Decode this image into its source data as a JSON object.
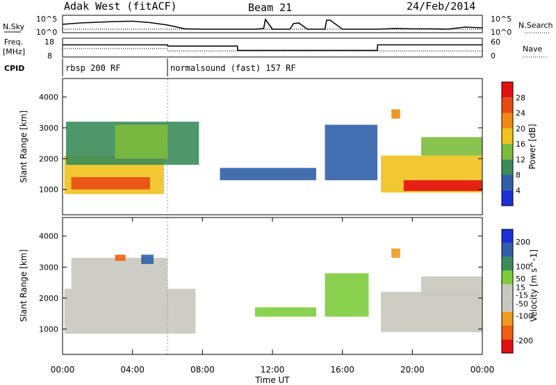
{
  "header": {
    "station": "Adak West (fitACF)",
    "beam": "Beam 21",
    "date": "24/Feb/2014"
  },
  "colors": {
    "power": [
      "#1a2fd6",
      "#2f5fa8",
      "#3c8c5a",
      "#7dbb3c",
      "#f0c21e",
      "#f08a14",
      "#e84a14",
      "#e31010"
    ],
    "velocity": [
      "#e31010",
      "#f06010",
      "#f09a20",
      "#c8c8c0",
      "#c8c8c0",
      "#7dcc3c",
      "#3c8c5a",
      "#2f5fa8",
      "#1a2fd6"
    ],
    "ground_scatter": "#c8c8c0"
  },
  "chart_data": [
    {
      "type": "line",
      "name": "noise-panel",
      "left_label": "N.Sky",
      "right_label": "N.Search",
      "left_ticks": [
        "10^5",
        "10^0"
      ],
      "right_ticks": [
        "10^5",
        "10^0"
      ],
      "series": [
        {
          "name": "N.Sky",
          "style": "solid",
          "x": [
            0,
            1,
            2,
            3,
            4,
            5,
            6,
            7,
            8,
            9,
            10,
            11,
            11.5,
            11.6,
            12,
            13,
            13.2,
            13.5,
            14,
            15,
            15.1,
            15.3,
            16,
            17,
            18,
            19,
            20,
            21,
            22,
            23,
            24
          ],
          "y": [
            2.4,
            2.8,
            3.0,
            3.2,
            3.3,
            2.9,
            2.2,
            1.1,
            1.0,
            1.0,
            1.0,
            1.0,
            1.2,
            3.8,
            1.0,
            1.0,
            2.6,
            2.8,
            1.0,
            1.0,
            3.6,
            3.6,
            1.0,
            1.0,
            1.0,
            1.2,
            1.1,
            1.1,
            1.0,
            1.6,
            1.4
          ]
        },
        {
          "name": "N.Search",
          "style": "dotted",
          "x": [
            0,
            6,
            12,
            18,
            24
          ],
          "y": [
            1.0,
            1.0,
            1.0,
            1.0,
            1.0
          ]
        }
      ],
      "xlim": [
        0,
        24
      ],
      "ylim": [
        0,
        5
      ]
    },
    {
      "type": "line",
      "name": "freq-panel",
      "left_label": "Freq.",
      "left_unit": "[MHz]",
      "right_label": "Nave",
      "left_ticks": [
        "18",
        "8"
      ],
      "right_ticks": [
        "60",
        "0"
      ],
      "series": [
        {
          "name": "Freq.",
          "style": "solid",
          "x": [
            0,
            6.0,
            6.01,
            10.0,
            10.01,
            18.0,
            18.01,
            24
          ],
          "y": [
            14.5,
            14.5,
            13.8,
            13.8,
            11.5,
            11.5,
            14.5,
            14.5
          ]
        },
        {
          "name": "Nave",
          "style": "dotted",
          "x": [
            0,
            6.0,
            6.01,
            24
          ],
          "y": [
            12.5,
            12.5,
            11.2,
            11.2
          ]
        }
      ],
      "xlim": [
        0,
        24
      ],
      "ylim": [
        8,
        18
      ]
    },
    {
      "type": "table",
      "name": "cpid-bar",
      "label": "CPID",
      "segments": [
        {
          "start": 0,
          "end": 6,
          "text": "rbsp 200 RF"
        },
        {
          "start": 6,
          "end": 24,
          "text": "normalsound (fast) 157 RF"
        }
      ]
    },
    {
      "type": "heatmap",
      "name": "power-panel",
      "ylabel": "Slant Range [km]",
      "yticks": [
        1000,
        2000,
        3000,
        4000
      ],
      "ylim": [
        180,
        4600
      ],
      "xlim": [
        0,
        24
      ],
      "colorbar": {
        "label": "Power [dB]",
        "ticks": [
          4,
          8,
          12,
          16,
          20,
          24,
          28
        ],
        "range": [
          0,
          32
        ]
      },
      "regions": [
        {
          "x0": 0.1,
          "x1": 5.8,
          "y0": 850,
          "y1": 2100,
          "value": 18
        },
        {
          "x0": 0.5,
          "x1": 5.0,
          "y0": 1000,
          "y1": 1400,
          "value": 27
        },
        {
          "x0": 0.2,
          "x1": 7.8,
          "y0": 1800,
          "y1": 3200,
          "value": 8
        },
        {
          "x0": 3.0,
          "x1": 6.0,
          "y0": 2000,
          "y1": 3100,
          "value": 14
        },
        {
          "x0": 9.0,
          "x1": 14.5,
          "y0": 1300,
          "y1": 1700,
          "value": 6
        },
        {
          "x0": 15.0,
          "x1": 18.0,
          "y0": 1300,
          "y1": 3100,
          "value": 6
        },
        {
          "x0": 18.2,
          "x1": 24.0,
          "y0": 900,
          "y1": 2100,
          "value": 18
        },
        {
          "x0": 19.5,
          "x1": 24.0,
          "y0": 950,
          "y1": 1300,
          "value": 28
        },
        {
          "x0": 20.5,
          "x1": 24.0,
          "y0": 2100,
          "y1": 2700,
          "value": 14
        },
        {
          "x0": 18.8,
          "x1": 19.3,
          "y0": 3300,
          "y1": 3600,
          "value": 22
        }
      ]
    },
    {
      "type": "heatmap",
      "name": "velocity-panel",
      "ylabel": "Slant Range [km]",
      "yticks": [
        1000,
        2000,
        3000,
        4000
      ],
      "ylim": [
        180,
        4600
      ],
      "xlim": [
        0,
        24
      ],
      "xticks": [
        "00:00",
        "04:00",
        "08:00",
        "12:00",
        "16:00",
        "20:00",
        "00:00"
      ],
      "xlabel": "Time UT",
      "colorbar": {
        "label": "Velocity [m s^-1]",
        "ticks": [
          -200,
          -100,
          -50,
          -15,
          15,
          50,
          100,
          200
        ],
        "range": [
          -250,
          250
        ]
      },
      "regions": [
        {
          "x0": 0.1,
          "x1": 7.6,
          "y0": 850,
          "y1": 2300,
          "value": 0
        },
        {
          "x0": 0.5,
          "x1": 6.0,
          "y0": 2300,
          "y1": 3300,
          "value": 0
        },
        {
          "x0": 3.0,
          "x1": 3.6,
          "y0": 3200,
          "y1": 3400,
          "value": -180
        },
        {
          "x0": 4.5,
          "x1": 5.2,
          "y0": 3100,
          "y1": 3400,
          "value": 150
        },
        {
          "x0": 11.0,
          "x1": 14.5,
          "y0": 1400,
          "y1": 1700,
          "value": 40
        },
        {
          "x0": 15.0,
          "x1": 17.5,
          "y0": 1400,
          "y1": 2800,
          "value": 40
        },
        {
          "x0": 18.2,
          "x1": 24.0,
          "y0": 900,
          "y1": 2200,
          "value": 0
        },
        {
          "x0": 20.5,
          "x1": 24.0,
          "y0": 2100,
          "y1": 2700,
          "value": 0
        },
        {
          "x0": 18.8,
          "x1": 19.3,
          "y0": 3300,
          "y1": 3600,
          "value": -120
        }
      ]
    }
  ]
}
